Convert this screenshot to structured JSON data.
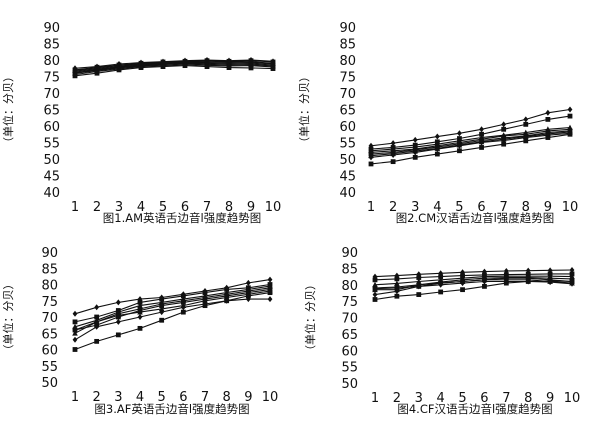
{
  "chart_data": [
    {
      "type": "line",
      "title": "图1.AM英语舌边音l强度趋势图",
      "ylabel": "（单位：分贝）",
      "xlabel": "",
      "x": [
        1,
        2,
        3,
        4,
        5,
        6,
        7,
        8,
        9,
        10
      ],
      "ylim": [
        40,
        90
      ],
      "yticks": [
        40,
        45,
        50,
        55,
        60,
        65,
        70,
        75,
        80,
        85,
        90
      ],
      "grid": false,
      "series": [
        {
          "values": [
            77.5,
            78.0,
            78.8,
            79.2,
            79.5,
            79.8,
            80.0,
            79.8,
            80.0,
            79.6
          ]
        },
        {
          "values": [
            77.0,
            77.8,
            78.5,
            79.0,
            79.4,
            79.6,
            79.8,
            79.6,
            79.8,
            79.4
          ]
        },
        {
          "values": [
            76.8,
            77.5,
            78.3,
            78.8,
            79.2,
            79.5,
            79.5,
            79.4,
            79.5,
            79.0
          ]
        },
        {
          "values": [
            76.5,
            77.2,
            78.0,
            78.6,
            79.0,
            79.3,
            79.2,
            79.1,
            79.2,
            78.8
          ]
        },
        {
          "values": [
            76.2,
            77.0,
            77.8,
            78.4,
            78.8,
            79.1,
            79.0,
            78.8,
            78.9,
            78.5
          ]
        },
        {
          "values": [
            76.0,
            76.8,
            77.6,
            78.2,
            78.6,
            78.9,
            78.7,
            78.5,
            78.6,
            78.2
          ]
        },
        {
          "values": [
            75.6,
            76.5,
            77.3,
            78.0,
            78.3,
            78.6,
            78.4,
            78.2,
            78.3,
            77.9
          ]
        },
        {
          "values": [
            75.2,
            76.0,
            77.0,
            77.7,
            78.0,
            78.3,
            78.0,
            77.7,
            77.6,
            77.4
          ]
        }
      ]
    },
    {
      "type": "line",
      "title": "图2.CM汉语舌边音l强度趋势图",
      "ylabel": "（单位：分贝）",
      "xlabel": "",
      "x": [
        1,
        2,
        3,
        4,
        5,
        6,
        7,
        8,
        9,
        10
      ],
      "ylim": [
        40,
        90
      ],
      "yticks": [
        40,
        45,
        50,
        55,
        60,
        65,
        70,
        75,
        80,
        85,
        90
      ],
      "grid": false,
      "series": [
        {
          "values": [
            54.0,
            54.8,
            55.8,
            56.8,
            57.8,
            59.0,
            60.5,
            62.0,
            64.0,
            65.0
          ]
        },
        {
          "values": [
            53.0,
            53.5,
            54.2,
            55.2,
            56.2,
            57.5,
            59.0,
            60.5,
            62.0,
            63.0
          ]
        },
        {
          "values": [
            52.5,
            53.0,
            53.6,
            54.5,
            55.5,
            56.5,
            57.2,
            58.0,
            59.0,
            59.5
          ]
        },
        {
          "values": [
            52.0,
            52.5,
            53.0,
            54.0,
            55.0,
            56.0,
            57.0,
            57.5,
            58.5,
            59.0
          ]
        },
        {
          "values": [
            51.5,
            52.0,
            52.8,
            53.6,
            54.6,
            55.6,
            56.4,
            57.0,
            58.0,
            58.5
          ]
        },
        {
          "values": [
            51.0,
            51.6,
            52.4,
            53.2,
            54.2,
            55.2,
            56.0,
            56.8,
            57.6,
            58.2
          ]
        },
        {
          "values": [
            50.5,
            51.2,
            52.0,
            53.0,
            54.0,
            55.0,
            55.6,
            56.5,
            57.2,
            57.8
          ]
        },
        {
          "values": [
            48.5,
            49.2,
            50.5,
            51.5,
            52.5,
            53.5,
            54.5,
            55.5,
            56.5,
            57.5
          ]
        }
      ]
    },
    {
      "type": "line",
      "title": "图3.AF英语舌边音l强度趋势图",
      "ylabel": "（单位：分贝）",
      "xlabel": "",
      "x": [
        1,
        2,
        3,
        4,
        5,
        6,
        7,
        8,
        9,
        10
      ],
      "ylim": [
        50,
        90
      ],
      "yticks": [
        50,
        55,
        60,
        65,
        70,
        75,
        80,
        85,
        90
      ],
      "grid": false,
      "series": [
        {
          "values": [
            71.0,
            73.0,
            74.5,
            75.5,
            76.0,
            77.0,
            78.0,
            79.0,
            80.5,
            81.5
          ]
        },
        {
          "values": [
            68.5,
            70.0,
            72.0,
            74.5,
            75.5,
            76.5,
            77.5,
            78.5,
            79.0,
            80.0
          ]
        },
        {
          "values": [
            67.0,
            69.0,
            71.5,
            73.5,
            74.5,
            75.5,
            76.5,
            77.5,
            78.5,
            79.5
          ]
        },
        {
          "values": [
            66.0,
            68.5,
            71.0,
            72.5,
            74.0,
            75.0,
            76.0,
            77.0,
            78.0,
            79.0
          ]
        },
        {
          "values": [
            66.0,
            67.5,
            70.0,
            72.0,
            73.5,
            74.5,
            75.5,
            76.5,
            77.5,
            78.5
          ]
        },
        {
          "values": [
            65.0,
            68.5,
            70.5,
            71.5,
            72.5,
            73.5,
            75.0,
            76.0,
            77.0,
            78.0
          ]
        },
        {
          "values": [
            63.0,
            67.0,
            68.5,
            70.0,
            71.5,
            73.0,
            74.0,
            75.0,
            75.5,
            75.5
          ]
        },
        {
          "values": [
            60.0,
            62.5,
            64.5,
            66.5,
            69.0,
            71.5,
            73.5,
            75.0,
            76.5,
            77.5
          ]
        }
      ]
    },
    {
      "type": "line",
      "title": "图4.CF汉语舌边音l强度趋势图",
      "ylabel": "（单位：分贝）",
      "xlabel": "",
      "x": [
        1,
        2,
        3,
        4,
        5,
        6,
        7,
        8,
        9,
        10
      ],
      "ylim": [
        50,
        90
      ],
      "yticks": [
        50,
        55,
        60,
        65,
        70,
        75,
        80,
        85,
        90
      ],
      "grid": false,
      "series": [
        {
          "values": [
            82.5,
            82.8,
            83.2,
            83.5,
            83.8,
            84.0,
            84.2,
            84.3,
            84.4,
            84.5
          ]
        },
        {
          "values": [
            81.5,
            81.8,
            82.2,
            82.5,
            82.8,
            83.0,
            83.1,
            83.2,
            83.3,
            83.3
          ]
        },
        {
          "values": [
            80.0,
            80.4,
            81.0,
            81.5,
            82.0,
            82.5,
            82.6,
            82.6,
            82.6,
            82.5
          ]
        },
        {
          "values": [
            79.0,
            79.3,
            80.0,
            80.8,
            81.5,
            82.0,
            82.2,
            82.2,
            82.0,
            81.8
          ]
        },
        {
          "values": [
            78.8,
            79.0,
            79.5,
            80.5,
            81.0,
            81.5,
            82.0,
            82.0,
            81.5,
            81.0
          ]
        },
        {
          "values": [
            78.5,
            78.5,
            80.0,
            80.5,
            81.0,
            81.5,
            81.5,
            81.5,
            81.0,
            80.5
          ]
        },
        {
          "values": [
            77.0,
            78.0,
            79.5,
            80.0,
            80.5,
            81.0,
            81.0,
            81.0,
            80.8,
            80.3
          ]
        },
        {
          "values": [
            75.5,
            76.5,
            77.0,
            77.8,
            78.5,
            79.5,
            80.5,
            81.0,
            81.2,
            81.0
          ]
        }
      ]
    }
  ]
}
